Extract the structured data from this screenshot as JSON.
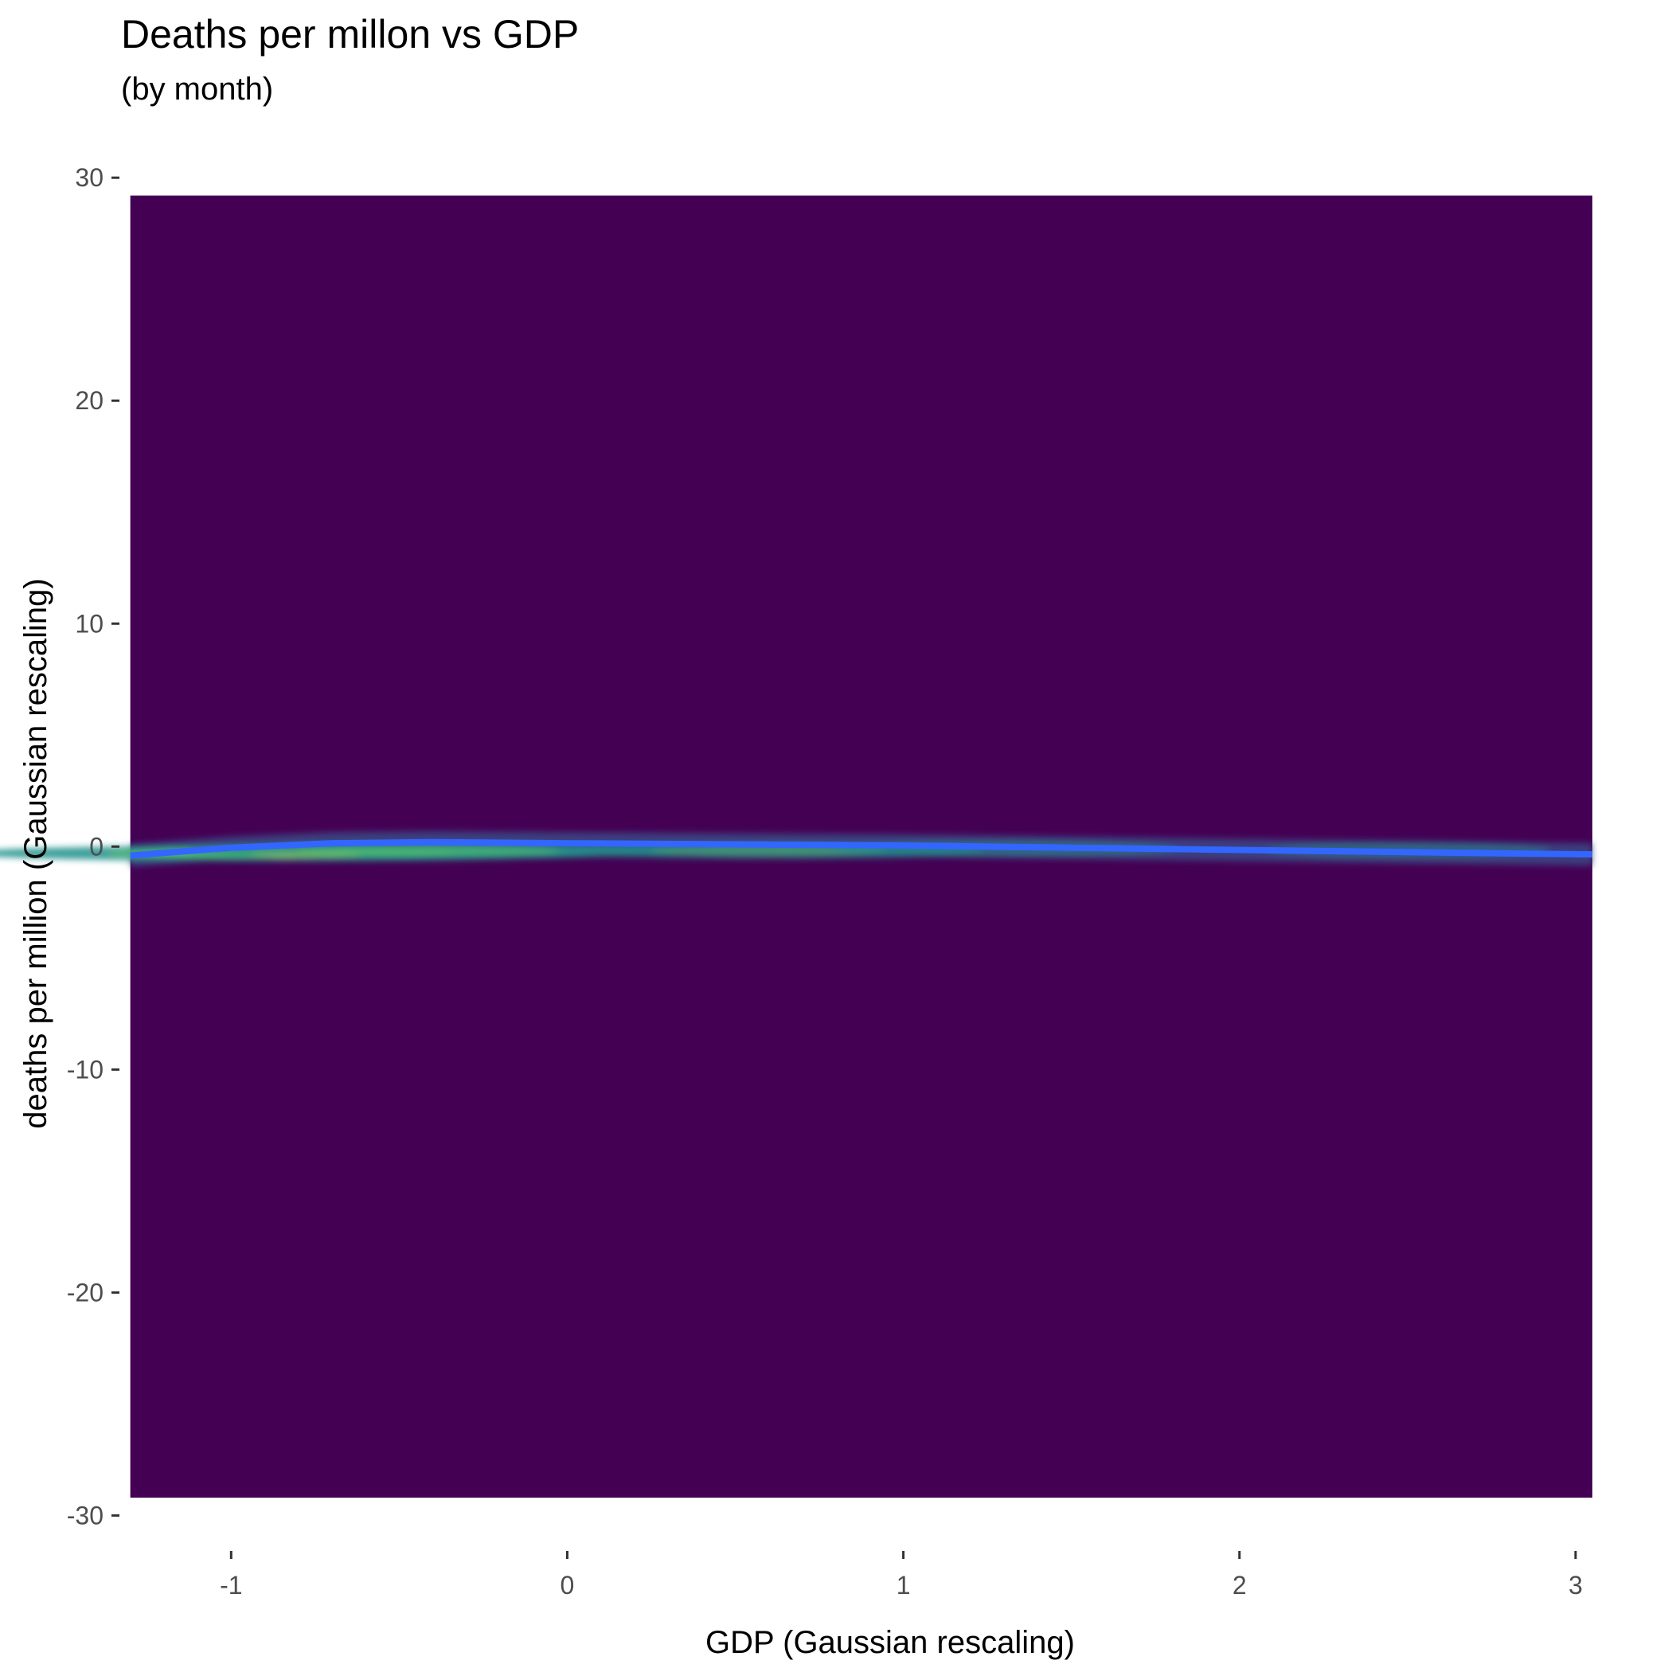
{
  "chart_data": {
    "type": "heatmap",
    "title": "Deaths per millon vs GDP",
    "subtitle": "(by month)",
    "xlabel": "GDP (Gaussian rescaling)",
    "ylabel": "deaths per million (Gaussian rescaling)",
    "xlim": [
      -1.33,
      3.05
    ],
    "ylim": [
      -30.7,
      30.4
    ],
    "x_ticks": [
      -1,
      0,
      1,
      2,
      3
    ],
    "y_ticks": [
      -30,
      -20,
      -10,
      0,
      10,
      20,
      30
    ],
    "grid": false,
    "density_extent": {
      "x": [
        -1.3,
        3.05
      ],
      "y": [
        -29.2,
        29.2
      ]
    },
    "colors": {
      "background": "#440154",
      "low": "#3b528b",
      "mid": "#21918c",
      "high": "#5ec962",
      "peak": "#fde725",
      "trend_line": "#3366ff"
    },
    "density_peaks": [
      {
        "x": -0.85,
        "y": -0.3,
        "level": 1.0
      },
      {
        "x": -0.4,
        "y": -0.2,
        "level": 0.65
      },
      {
        "x": 0.6,
        "y": -0.2,
        "level": 0.5
      },
      {
        "x": 1.3,
        "y": -0.1,
        "level": 0.3
      },
      {
        "x": 2.5,
        "y": -0.15,
        "level": 0.15
      }
    ],
    "trend_line": {
      "x": [
        -1.3,
        -1.0,
        -0.7,
        -0.4,
        0.0,
        0.5,
        1.0,
        1.5,
        2.0,
        2.5,
        3.05
      ],
      "y": [
        -0.4,
        -0.05,
        0.15,
        0.2,
        0.15,
        0.1,
        0.05,
        -0.05,
        -0.15,
        -0.25,
        -0.35
      ]
    }
  }
}
